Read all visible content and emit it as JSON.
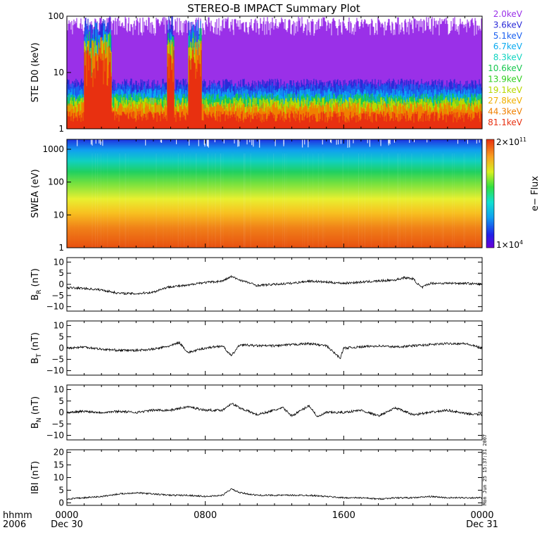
{
  "title": "STEREO-B IMPACT Summary Plot",
  "time_axis": {
    "label_top": "hhmm",
    "label_bottom": "2006",
    "ticks": [
      {
        "hhmm": "0000",
        "date": "Dec 30",
        "hour": 0
      },
      {
        "hhmm": "0800",
        "date": "",
        "hour": 8
      },
      {
        "hhmm": "1600",
        "date": "",
        "hour": 16
      },
      {
        "hhmm": "0000",
        "date": "Dec 31",
        "hour": 24
      }
    ],
    "range_hours": [
      0,
      24
    ]
  },
  "timestamp": "Mon Jun 25 15:37:31 2007",
  "colorbar": {
    "label": "e− Flux",
    "max_label": "2×10",
    "max_exp": "11",
    "min_label": "1×10",
    "min_exp": "4"
  },
  "chart_data": [
    {
      "type": "line",
      "panel": "ste",
      "ylabel": "STE D0 (keV)",
      "yscale": "log",
      "ylim": [
        1,
        100
      ],
      "yticks": [
        "1",
        "10",
        "100"
      ],
      "legend": [
        {
          "name": "2.0keV",
          "color": "#9a30e8"
        },
        {
          "name": "3.6keV",
          "color": "#2a2ad8"
        },
        {
          "name": "5.1keV",
          "color": "#1a60f0"
        },
        {
          "name": "6.7keV",
          "color": "#0aaaf0"
        },
        {
          "name": "8.3keV",
          "color": "#10d4c0"
        },
        {
          "name": "10.6keV",
          "color": "#18c850"
        },
        {
          "name": "13.9keV",
          "color": "#30d020"
        },
        {
          "name": "19.1keV",
          "color": "#b8d800"
        },
        {
          "name": "27.8keV",
          "color": "#f0b000"
        },
        {
          "name": "44.3keV",
          "color": "#f08000"
        },
        {
          "name": "81.1keV",
          "color": "#e83010"
        }
      ],
      "series": [
        {
          "name": "2.0keV",
          "level": 75
        },
        {
          "name": "3.6keV",
          "level": 6
        },
        {
          "name": "5.1keV",
          "level": 5
        },
        {
          "name": "6.7keV",
          "level": 4
        },
        {
          "name": "10.6keV",
          "level": 3.3
        },
        {
          "name": "19.1keV",
          "level": 2.8
        },
        {
          "name": "44.3keV",
          "level": 2.3
        },
        {
          "name": "81.1keV",
          "level": 1.6
        }
      ],
      "bursts_hours": [
        [
          1.0,
          2.6
        ],
        [
          5.8,
          6.2
        ],
        [
          7.0,
          7.8
        ]
      ]
    },
    {
      "type": "heatmap",
      "panel": "swea",
      "ylabel": "SWEA (eV)",
      "yscale": "log",
      "ylim": [
        1,
        2000
      ],
      "yticks": [
        "1",
        "10",
        "100",
        "1000"
      ],
      "zlim": [
        10000,
        200000000000
      ]
    },
    {
      "type": "line",
      "panel": "br",
      "ylabel": "B",
      "ysub": "R",
      "yunit": " (nT)",
      "ylim": [
        -12,
        12
      ],
      "yticks": [
        -10,
        -5,
        0,
        5,
        10
      ],
      "x": [
        0,
        1,
        2,
        3,
        4,
        5,
        5.5,
        6,
        7,
        7.5,
        8,
        9,
        9.5,
        10,
        11,
        12,
        13,
        14,
        15,
        16,
        17,
        18,
        19,
        19.5,
        20,
        20.5,
        21,
        22,
        23,
        24
      ],
      "y": [
        -1.5,
        -1.8,
        -2.5,
        -4,
        -4.2,
        -3.5,
        -2,
        -1,
        -0.5,
        0.5,
        0.8,
        1.5,
        3.5,
        2,
        -0.5,
        0,
        0.5,
        1.5,
        1,
        0.5,
        1,
        1.5,
        2,
        3,
        2.5,
        -1.5,
        0.5,
        0.5,
        0.5,
        0
      ]
    },
    {
      "type": "line",
      "panel": "bt",
      "ylabel": "B",
      "ysub": "T",
      "yunit": " (nT)",
      "ylim": [
        -12,
        12
      ],
      "yticks": [
        -10,
        -5,
        0,
        5,
        10
      ],
      "x": [
        0,
        1,
        2,
        3,
        4,
        5,
        6,
        6.5,
        7,
        8,
        9,
        9.5,
        10,
        11,
        12,
        13,
        14,
        15,
        15.8,
        16,
        17,
        18,
        19,
        20,
        21,
        22,
        23,
        24
      ],
      "y": [
        0,
        0.5,
        -0.5,
        -1,
        -1,
        -0.5,
        1,
        2.5,
        -2,
        0,
        1,
        -3.5,
        1.5,
        1,
        1,
        1.5,
        2,
        1,
        -4.5,
        0,
        0.5,
        1,
        0.5,
        1,
        1.5,
        2,
        2,
        0
      ]
    },
    {
      "type": "line",
      "panel": "bn",
      "ylabel": "B",
      "ysub": "N",
      "yunit": " (nT)",
      "ylim": [
        -12,
        12
      ],
      "yticks": [
        -10,
        -5,
        0,
        5,
        10
      ],
      "x": [
        0,
        1,
        2,
        3,
        4,
        5,
        6,
        7,
        8,
        9,
        9.5,
        10,
        11,
        12,
        12.5,
        13,
        14,
        14.5,
        15,
        16,
        17,
        18,
        19,
        20,
        21,
        22,
        23,
        24
      ],
      "y": [
        0,
        0.5,
        0,
        0.5,
        0,
        1,
        1,
        2.5,
        1,
        1,
        4,
        2,
        -1,
        1,
        2,
        -1.5,
        3,
        -2,
        0,
        0,
        1,
        -1.5,
        2,
        -1,
        0,
        1,
        -0.5,
        -1
      ]
    },
    {
      "type": "line",
      "panel": "bmag",
      "ylabel": "IBI",
      "ysub": "",
      "yunit": " (nT)",
      "ylim": [
        -1,
        21
      ],
      "yticks": [
        0,
        5,
        10,
        15,
        20
      ],
      "x": [
        0,
        1,
        2,
        3,
        4,
        5,
        6,
        7,
        8,
        9,
        9.5,
        10,
        11,
        12,
        13,
        14,
        15,
        16,
        17,
        18,
        19,
        20,
        21,
        22,
        23,
        24
      ],
      "y": [
        1.5,
        2,
        2.5,
        3.5,
        4,
        3.5,
        3,
        3,
        2.5,
        3,
        5.5,
        4,
        3,
        3,
        3,
        3,
        2.5,
        2,
        2,
        1.5,
        2,
        2,
        2.5,
        2,
        2,
        2
      ]
    }
  ]
}
